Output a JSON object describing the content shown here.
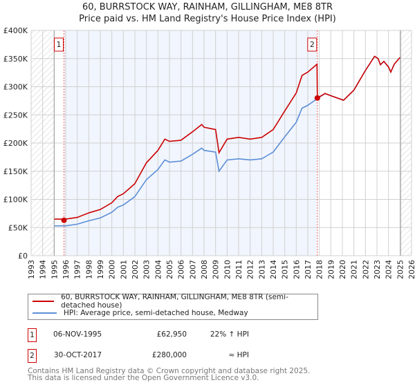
{
  "chart_data": {
    "type": "line",
    "title": "60, BURRSTOCK WAY, RAINHAM, GILLINGHAM, ME8 8TR",
    "subtitle": "Price paid vs. HM Land Registry's House Price Index (HPI)",
    "xlim": [
      1993,
      2026
    ],
    "ylim": [
      0,
      400000
    ],
    "y_ticks": [
      {
        "v": 0,
        "label": "£0"
      },
      {
        "v": 50000,
        "label": "£50K"
      },
      {
        "v": 100000,
        "label": "£100K"
      },
      {
        "v": 150000,
        "label": "£150K"
      },
      {
        "v": 200000,
        "label": "£200K"
      },
      {
        "v": 250000,
        "label": "£250K"
      },
      {
        "v": 300000,
        "label": "£300K"
      },
      {
        "v": 350000,
        "label": "£350K"
      },
      {
        "v": 400000,
        "label": "£400K"
      }
    ],
    "x_ticks": [
      "1993",
      "1994",
      "1995",
      "1996",
      "1997",
      "1998",
      "1999",
      "2000",
      "2001",
      "2002",
      "2003",
      "2004",
      "2005",
      "2006",
      "2007",
      "2008",
      "2009",
      "2010",
      "2011",
      "2012",
      "2013",
      "2014",
      "2015",
      "2016",
      "2017",
      "2018",
      "2019",
      "2020",
      "2021",
      "2022",
      "2023",
      "2024",
      "2025",
      "2026"
    ],
    "grid": true,
    "hatched_ranges": [
      [
        1993,
        1995
      ],
      [
        2025.05,
        2026
      ]
    ],
    "shaded_range": [
      1995.85,
      2017.83
    ],
    "series": [
      {
        "name": "60, BURRSTOCK WAY, RAINHAM, GILLINGHAM, ME8 8TR (semi-detached house)",
        "color": "#cc0000",
        "x": [
          1995,
          1996,
          1997,
          1998,
          1999,
          2000,
          2000.5,
          2001,
          2002,
          2003,
          2004,
          2004.6,
          2005,
          2006,
          2007,
          2007.8,
          2008,
          2009,
          2009.3,
          2010,
          2011,
          2012,
          2013,
          2014,
          2015,
          2016,
          2016.5,
          2017,
          2017.8,
          2017.83,
          2018.5,
          2019,
          2020.1,
          2021,
          2022,
          2022.8,
          2023.1,
          2023.3,
          2023.6,
          2024,
          2024.2,
          2024.5,
          2025
        ],
        "y": [
          65000,
          65000,
          68000,
          76000,
          82000,
          94000,
          105000,
          110000,
          128000,
          165000,
          187000,
          207000,
          203000,
          205000,
          220000,
          233000,
          228000,
          224000,
          183000,
          207000,
          210000,
          207000,
          210000,
          224000,
          257000,
          289000,
          320000,
          326000,
          340000,
          280000,
          288000,
          284000,
          276000,
          294000,
          329000,
          354000,
          350000,
          339000,
          345000,
          335000,
          326000,
          340000,
          352000
        ]
      },
      {
        "name": "HPI: Average price, semi-detached house, Medway",
        "color": "#5b8ed6",
        "x": [
          1995,
          1996,
          1997,
          1998,
          1999,
          2000,
          2000.5,
          2001,
          2002,
          2003,
          2004,
          2004.6,
          2005,
          2006,
          2007,
          2007.8,
          2008,
          2009,
          2009.3,
          2010,
          2011,
          2012,
          2013,
          2014,
          2015,
          2016,
          2016.5,
          2017,
          2017.83,
          2018.5,
          2019,
          2020.1,
          2021,
          2022,
          2022.8,
          2023.1,
          2023.3,
          2023.6,
          2024,
          2024.2,
          2024.5,
          2025
        ],
        "y": [
          53000,
          53000,
          56000,
          62000,
          67000,
          77000,
          86000,
          90000,
          105000,
          135000,
          153000,
          170000,
          166000,
          168000,
          180000,
          191000,
          187000,
          184000,
          150000,
          170000,
          172000,
          170000,
          172000,
          184000,
          211000,
          237000,
          262000,
          267000,
          279000,
          288000,
          284000,
          276000,
          294000,
          329000,
          354000,
          350000,
          339000,
          345000,
          335000,
          326000,
          340000,
          352000
        ]
      }
    ],
    "sales": [
      {
        "num": "1",
        "x": 1995.85,
        "y": 62950
      },
      {
        "num": "2",
        "x": 2017.83,
        "y": 280000
      }
    ],
    "legend_position": "below"
  },
  "transactions": [
    {
      "num": "1",
      "date": "06-NOV-1995",
      "price": "£62,950",
      "hpi": "22% ↑ HPI"
    },
    {
      "num": "2",
      "date": "30-OCT-2017",
      "price": "£280,000",
      "hpi": "≈ HPI"
    }
  ],
  "footer": {
    "line1": "Contains HM Land Registry data © Crown copyright and database right 2025.",
    "line2": "This data is licensed under the Open Government Licence v3.0."
  }
}
